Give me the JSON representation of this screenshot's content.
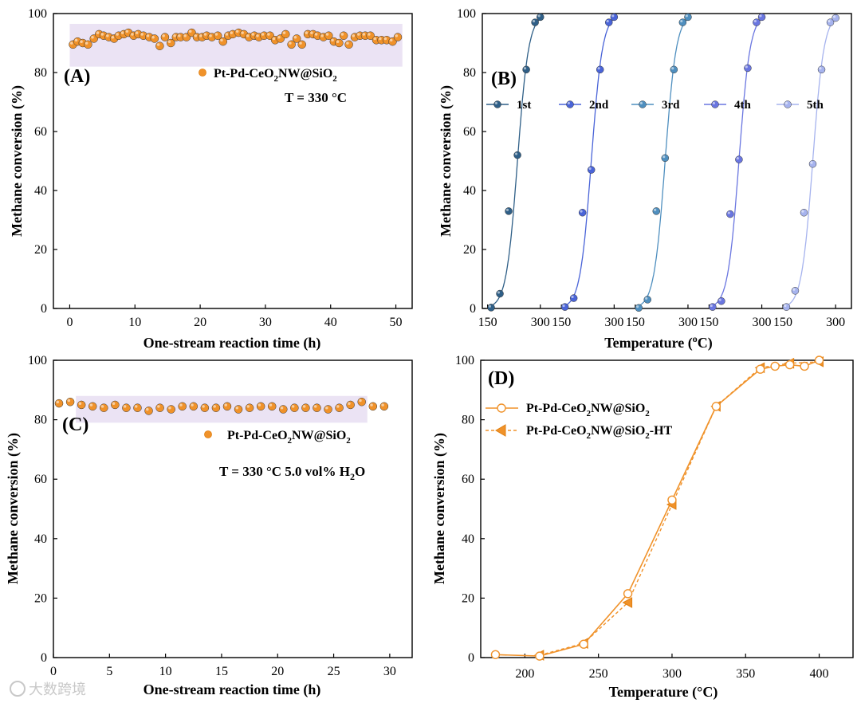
{
  "colors": {
    "orange": "#f0922a",
    "orange_dark": "#e07f10",
    "band": "#ebe3f4",
    "b_series": [
      "#2f5f87",
      "#4a64d8",
      "#4f8fbf",
      "#6a76e0",
      "#a6b3ee"
    ]
  },
  "watermark": "大数跨境",
  "chart_data": [
    {
      "panel": "(A)",
      "type": "scatter",
      "xlabel": "One-stream reaction time (h)",
      "ylabel": "Methane conversion (%)",
      "xlim": [
        -2.5,
        52.5
      ],
      "ylim": [
        0,
        100
      ],
      "xticks": [
        0,
        10,
        20,
        30,
        40,
        50
      ],
      "yticks": [
        0,
        20,
        40,
        60,
        80,
        100
      ],
      "legend": "Pt-Pd-CeO2NW@SiO2",
      "condition": "T = 330 °C",
      "highlight_y": [
        82,
        96.5
      ],
      "series": [
        {
          "name": "Pt-Pd-CeO2NW@SiO2",
          "x": [
            0.5,
            1.2,
            2,
            2.8,
            3.7,
            4.5,
            5.2,
            6,
            6.8,
            7.5,
            8.3,
            9,
            9.8,
            10.5,
            11.3,
            12.2,
            13,
            13.8,
            14.6,
            15.5,
            16.3,
            17,
            17.9,
            18.7,
            19.5,
            20.3,
            21,
            21.8,
            22.7,
            23.5,
            24.3,
            25,
            25.9,
            26.7,
            27.5,
            28.3,
            29,
            29.8,
            30.7,
            31.5,
            32.3,
            33.1,
            34,
            34.8,
            35.6,
            36.5,
            37.3,
            38,
            38.9,
            39.7,
            40.5,
            41.3,
            42,
            42.8,
            43.7,
            44.5,
            45.3,
            46.1,
            47,
            47.8,
            48.6,
            49.5,
            50.3
          ],
          "y": [
            89.5,
            90.5,
            90,
            89.5,
            91.5,
            93,
            92.5,
            92,
            91.5,
            92.5,
            93,
            93.5,
            92.5,
            93,
            92.5,
            92,
            91.5,
            89,
            92,
            90,
            92,
            92,
            92,
            93.5,
            92,
            92,
            92.5,
            92,
            92.5,
            90.5,
            92.5,
            93,
            93.5,
            93,
            92,
            92.5,
            92,
            92.5,
            92.5,
            91,
            91.5,
            93,
            89.5,
            91.5,
            89.5,
            93,
            93,
            92.5,
            92,
            92.5,
            90.5,
            90,
            92.5,
            89.5,
            92,
            92.5,
            92.5,
            92.5,
            91,
            91,
            91,
            90.5,
            92
          ]
        }
      ]
    },
    {
      "panel": "(B)",
      "type": "line",
      "xlabel": "Temperature (°C)",
      "ylabel": "Methane conversion (%)",
      "ylim": [
        0,
        100
      ],
      "yticks": [
        0,
        20,
        40,
        60,
        80,
        100
      ],
      "segment_xlim": [
        135,
        345
      ],
      "segment_xticks": [
        150,
        300
      ],
      "tick_labels": [
        "150",
        "300",
        "150",
        "300",
        "150",
        "300",
        "150",
        "300",
        "150",
        "300"
      ],
      "series": [
        {
          "name": "1st",
          "x": [
            160,
            185,
            210,
            235,
            260,
            285,
            300
          ],
          "y": [
            0.3,
            5,
            33,
            52,
            81,
            97,
            98.8
          ]
        },
        {
          "name": "2nd",
          "x": [
            160,
            185,
            210,
            235,
            260,
            285,
            300
          ],
          "y": [
            0.5,
            3.5,
            32.5,
            47,
            81,
            97,
            98.8
          ]
        },
        {
          "name": "3rd",
          "x": [
            160,
            185,
            210,
            235,
            260,
            285,
            300
          ],
          "y": [
            0.2,
            3,
            33,
            51,
            81,
            97,
            98.8
          ]
        },
        {
          "name": "4th",
          "x": [
            160,
            185,
            210,
            235,
            260,
            285,
            300
          ],
          "y": [
            0.5,
            2.5,
            32,
            50.5,
            81.5,
            97,
            98.8
          ]
        },
        {
          "name": "5th",
          "x": [
            160,
            185,
            210,
            235,
            260,
            285,
            300
          ],
          "y": [
            0.5,
            6,
            32.5,
            49,
            81,
            97,
            98.5
          ]
        }
      ]
    },
    {
      "panel": "(C)",
      "type": "scatter",
      "xlabel": "One-stream reaction time (h)",
      "ylabel": "Methane conversion (%)",
      "xlim": [
        0,
        32
      ],
      "ylim": [
        0,
        100
      ],
      "xticks": [
        0,
        5,
        10,
        15,
        20,
        25,
        30
      ],
      "yticks": [
        0,
        20,
        40,
        60,
        80,
        100
      ],
      "legend": "Pt-Pd-CeO2NW@SiO2",
      "condition": "T = 330 °C 5.0 vol% H2O",
      "highlight_y": [
        79,
        88
      ],
      "highlight_x": [
        2,
        28
      ],
      "series": [
        {
          "name": "Pt-Pd-CeO2NW@SiO2",
          "x": [
            0.5,
            1.5,
            2.5,
            3.5,
            4.5,
            5.5,
            6.5,
            7.5,
            8.5,
            9.5,
            10.5,
            11.5,
            12.5,
            13.5,
            14.5,
            15.5,
            16.5,
            17.5,
            18.5,
            19.5,
            20.5,
            21.5,
            22.5,
            23.5,
            24.5,
            25.5,
            26.5,
            27.5,
            28.5,
            29.5
          ],
          "y": [
            85.5,
            86,
            85,
            84.5,
            84,
            85,
            84,
            84,
            83,
            84,
            83.5,
            84.5,
            84.5,
            84,
            84,
            84.5,
            83.5,
            84,
            84.5,
            84.5,
            83.5,
            84,
            84,
            84,
            83.5,
            84,
            85,
            86,
            84.5,
            84.5
          ]
        }
      ]
    },
    {
      "panel": "(D)",
      "type": "line",
      "xlabel": "Temperature (°C)",
      "ylabel": "Methane conversion (%)",
      "xlim": [
        170,
        423
      ],
      "ylim": [
        0,
        100
      ],
      "xticks": [
        200,
        250,
        300,
        350,
        400
      ],
      "yticks": [
        0,
        20,
        40,
        60,
        80,
        100
      ],
      "series": [
        {
          "name": "Pt-Pd-CeO2NW@SiO2",
          "marker": "open-circle",
          "line": "solid",
          "x": [
            180,
            210,
            240,
            270,
            300,
            330,
            360,
            370,
            380,
            390,
            400
          ],
          "y": [
            1,
            0.5,
            4.5,
            21.5,
            53,
            84.5,
            97,
            98,
            98.5,
            98,
            100
          ]
        },
        {
          "name": "Pt-Pd-CeO2NW@SiO2-HT",
          "marker": "filled-triangle-left",
          "line": "dashed",
          "x": [
            210,
            240,
            270,
            300,
            330,
            360,
            380,
            400
          ],
          "y": [
            0.8,
            4.8,
            18.5,
            51.5,
            84.5,
            97.5,
            99,
            99.5
          ]
        }
      ]
    }
  ]
}
